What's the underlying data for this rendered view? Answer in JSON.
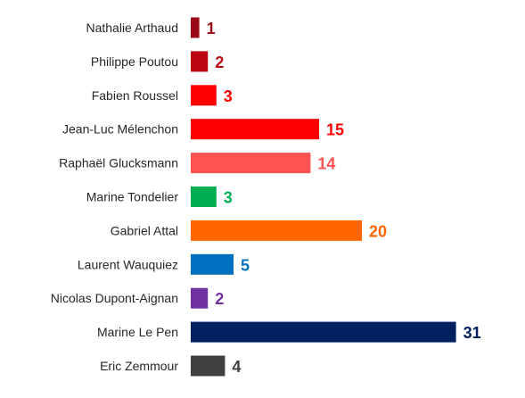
{
  "chart_data": {
    "type": "bar",
    "orientation": "horizontal",
    "title": "",
    "xlabel": "",
    "ylabel": "",
    "xlim": [
      0,
      31
    ],
    "grid": false,
    "legend": "none",
    "categories": [
      "Nathalie Arthaud",
      "Philippe Poutou",
      "Fabien Roussel",
      "Jean-Luc Mélenchon",
      "Raphaël Glucksmann",
      "Marine Tondelier",
      "Gabriel Attal",
      "Laurent Wauquiez",
      "Nicolas Dupont-Aignan",
      "Marine Le Pen",
      "Eric Zemmour"
    ],
    "values": [
      1,
      2,
      3,
      15,
      14,
      3,
      20,
      5,
      2,
      31,
      4
    ],
    "colors": [
      "#9b0b17",
      "#bb0612",
      "#ff0000",
      "#ff0000",
      "#ff5353",
      "#00b050",
      "#ff6600",
      "#0070c0",
      "#7030a0",
      "#002060",
      "#404040"
    ]
  }
}
